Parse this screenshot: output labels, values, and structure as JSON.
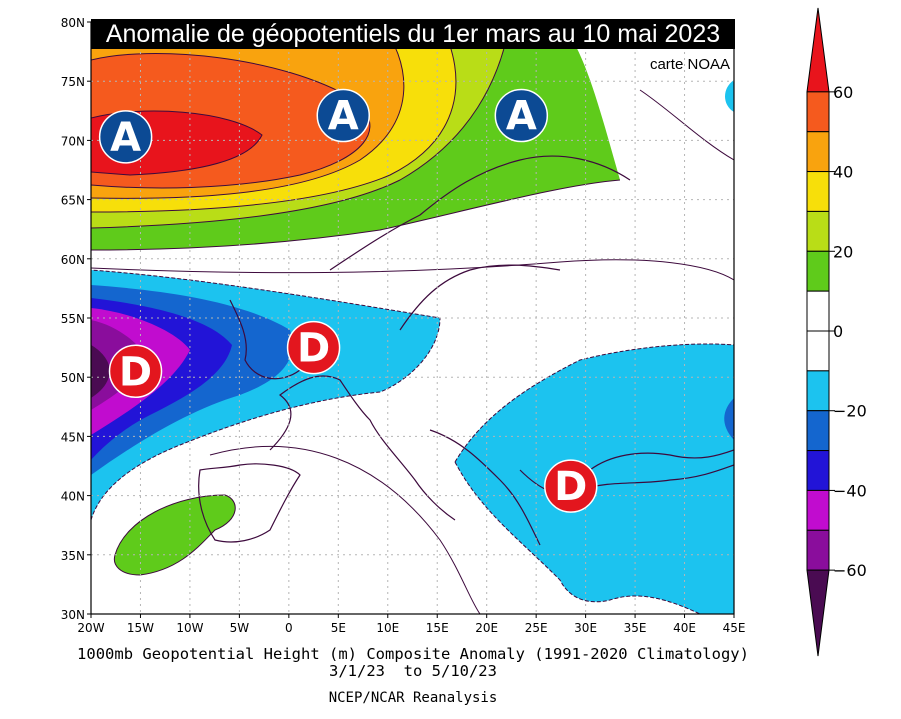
{
  "title": "Anomalie de géopotentiels du 1er mars au 10 mai 2023",
  "credit": "carte NOAA",
  "footer": {
    "line1": "1000mb Geopotential Height (m) Composite Anomaly (1991-2020 Climatology)",
    "line2": "3/1/23  to 5/10/23",
    "line3": "NCEP/NCAR Reanalysis"
  },
  "axes": {
    "lat_labels": [
      "80N",
      "75N",
      "70N",
      "65N",
      "60N",
      "55N",
      "50N",
      "45N",
      "40N",
      "35N",
      "30N"
    ],
    "lon_labels": [
      "20W",
      "15W",
      "10W",
      "5W",
      "0",
      "5E",
      "10E",
      "15E",
      "20E",
      "25E",
      "30E",
      "35E",
      "40E",
      "45E"
    ],
    "lat_range": [
      30,
      80
    ],
    "lon_range": [
      -20,
      45
    ],
    "grid": "dotted"
  },
  "colorbar": {
    "labels": [
      "60",
      "40",
      "20",
      "0",
      "-20",
      "-40",
      "-60"
    ],
    "bands": [
      {
        "from": 60,
        "to": 70,
        "color": "#e8141c"
      },
      {
        "from": 50,
        "to": 60,
        "color": "#f55a1e"
      },
      {
        "from": 40,
        "to": 50,
        "color": "#f9a30e"
      },
      {
        "from": 30,
        "to": 40,
        "color": "#f7df0a"
      },
      {
        "from": 20,
        "to": 30,
        "color": "#b9dd17"
      },
      {
        "from": 10,
        "to": 20,
        "color": "#5fcb1b"
      },
      {
        "from": 0,
        "to": 10,
        "color": "#ffffff"
      },
      {
        "from": -10,
        "to": 0,
        "color": "#ffffff"
      },
      {
        "from": -20,
        "to": -10,
        "color": "#1cc3ef"
      },
      {
        "from": -30,
        "to": -20,
        "color": "#1466cf"
      },
      {
        "from": -40,
        "to": -30,
        "color": "#2214d7"
      },
      {
        "from": -50,
        "to": -40,
        "color": "#c10ccf"
      },
      {
        "from": -60,
        "to": -50,
        "color": "#8a0d9c"
      },
      {
        "from": -70,
        "to": -60,
        "color": "#4a0b52"
      }
    ]
  },
  "markers": [
    {
      "label": "A",
      "type": "high",
      "lon": -16.5,
      "lat": 70.3,
      "color": "#0c4a94"
    },
    {
      "label": "A",
      "type": "high",
      "lon": 5.5,
      "lat": 72.1,
      "color": "#0c4a94"
    },
    {
      "label": "A",
      "type": "high",
      "lon": 23.5,
      "lat": 72.1,
      "color": "#0c4a94"
    },
    {
      "label": "D",
      "type": "low",
      "lon": -15.5,
      "lat": 50.5,
      "color": "#e3161e"
    },
    {
      "label": "D",
      "type": "low",
      "lon": 2.5,
      "lat": 52.5,
      "color": "#e3161e"
    },
    {
      "label": "D",
      "type": "low",
      "lon": 28.5,
      "lat": 40.8,
      "color": "#e3161e"
    }
  ]
}
